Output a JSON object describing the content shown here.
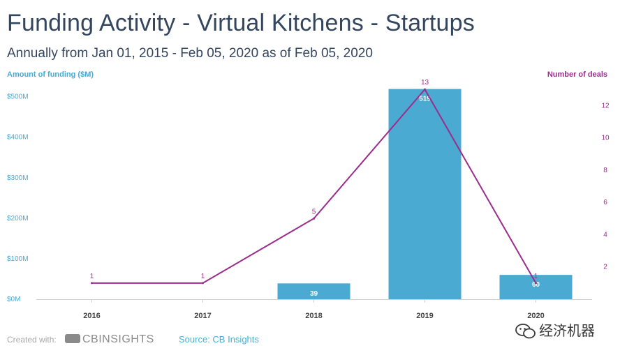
{
  "title": "Funding Activity - Virtual Kitchens - Startups",
  "subtitle": "Annually from Jan 01, 2015 - Feb 05, 2020 as of Feb 05, 2020",
  "footer": {
    "created_with": "Created with:",
    "logo_text": "CBINSIGHTS",
    "source": "Source: CB Insights"
  },
  "watermark": "经济机器",
  "colors": {
    "bar": "#4aaad2",
    "line": "#9b2d8c",
    "title": "#34455e"
  },
  "chart_data": {
    "type": "bar",
    "title": "Funding Activity - Virtual Kitchens - Startups",
    "categories": [
      "2016",
      "2017",
      "2018",
      "2019",
      "2020"
    ],
    "series": [
      {
        "name": "Amount of funding ($M)",
        "type": "bar",
        "axis": "left",
        "values": [
          0,
          0,
          39,
          519,
          60
        ],
        "labels": [
          "",
          "",
          "39",
          "519",
          "60"
        ]
      },
      {
        "name": "Number of deals",
        "type": "line",
        "axis": "right",
        "values": [
          1,
          1,
          5,
          13,
          1
        ],
        "labels": [
          "1",
          "1",
          "5",
          "13",
          "1"
        ]
      }
    ],
    "y_left": {
      "label": "Amount of funding ($M)",
      "range": [
        0,
        500
      ],
      "max": 520,
      "ticks": [
        0,
        100,
        200,
        300,
        400,
        500
      ],
      "tick_labels": [
        "$0M",
        "$100M",
        "$200M",
        "$300M",
        "$400M",
        "$500M"
      ]
    },
    "y_right": {
      "label": "Number of deals",
      "range": [
        0,
        13
      ],
      "max": 13.05,
      "ticks": [
        2,
        4,
        6,
        8,
        10,
        12
      ],
      "tick_labels": [
        "2",
        "4",
        "6",
        "8",
        "10",
        "12"
      ]
    },
    "grid": false
  }
}
